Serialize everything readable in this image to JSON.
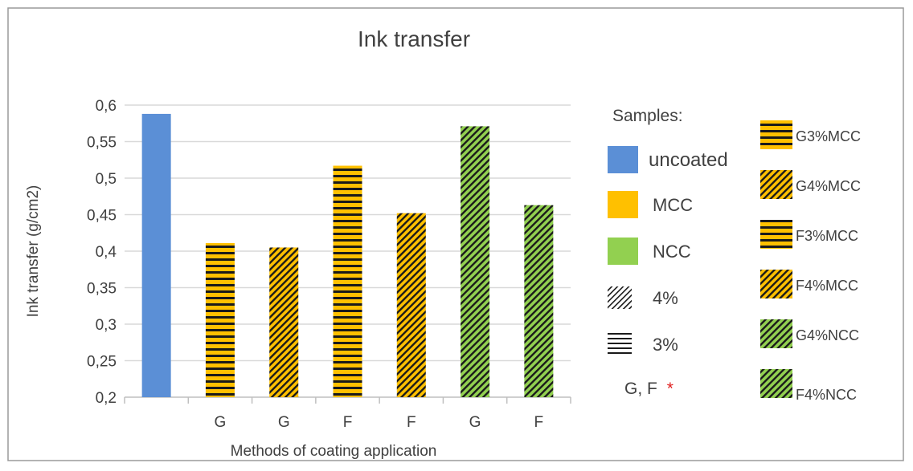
{
  "chart_data": {
    "type": "bar",
    "title": "Ink transfer",
    "xlabel": "Methods of coating application",
    "ylabel": "Ink transfer (g/cm2)",
    "ylim": [
      0.2,
      0.6
    ],
    "yticks": [
      "0,2",
      "0,25",
      "0,3",
      "0,35",
      "0,4",
      "0,45",
      "0,5",
      "0,55",
      "0,6"
    ],
    "ytick_values": [
      0.2,
      0.25,
      0.3,
      0.35,
      0.4,
      0.45,
      0.5,
      0.55,
      0.6
    ],
    "grid": true,
    "categories": [
      "",
      "G",
      "G",
      "F",
      "F",
      "G",
      "F"
    ],
    "bars": [
      {
        "sample": "uncoated",
        "value": 0.588,
        "color": "#5b8fd6",
        "pattern": "solid"
      },
      {
        "sample": "G3%MCC",
        "value": 0.411,
        "color": "#ffc000",
        "pattern": "horizontal"
      },
      {
        "sample": "G4%MCC",
        "value": 0.405,
        "color": "#ffc000",
        "pattern": "diagonal"
      },
      {
        "sample": "F3%MCC",
        "value": 0.517,
        "color": "#ffc000",
        "pattern": "horizontal"
      },
      {
        "sample": "F4%MCC",
        "value": 0.452,
        "color": "#ffc000",
        "pattern": "diagonal"
      },
      {
        "sample": "G4%NCC",
        "value": 0.571,
        "color": "#92d050",
        "pattern": "diagonal"
      },
      {
        "sample": "F4%NCC",
        "value": 0.463,
        "color": "#92d050",
        "pattern": "diagonal"
      }
    ],
    "legend_samples": {
      "title": "Samples:",
      "items": [
        {
          "label": "uncoated",
          "color": "#5b8fd6",
          "pattern": "solid"
        },
        {
          "label": "MCC",
          "color": "#ffc000",
          "pattern": "solid"
        },
        {
          "label": "NCC",
          "color": "#92d050",
          "pattern": "solid"
        },
        {
          "label": "4%",
          "color": "#ffffff",
          "pattern": "diagonal"
        },
        {
          "label": "3%",
          "color": "#ffffff",
          "pattern": "horizontal"
        }
      ],
      "method_label": "G, F",
      "method_marker": "*",
      "marker_color": "#e02020"
    },
    "legend_series": [
      {
        "label": "G3%MCC",
        "color": "#ffc000",
        "pattern": "horizontal"
      },
      {
        "label": "G4%MCC",
        "color": "#ffc000",
        "pattern": "diagonal"
      },
      {
        "label": "F3%MCC",
        "color": "#ffc000",
        "pattern": "horizontal"
      },
      {
        "label": "F4%MCC",
        "color": "#ffc000",
        "pattern": "diagonal"
      },
      {
        "label": "G4%NCC",
        "color": "#92d050",
        "pattern": "diagonal"
      },
      {
        "label": "F4%NCC",
        "color": "#92d050",
        "pattern": "diagonal"
      }
    ]
  }
}
